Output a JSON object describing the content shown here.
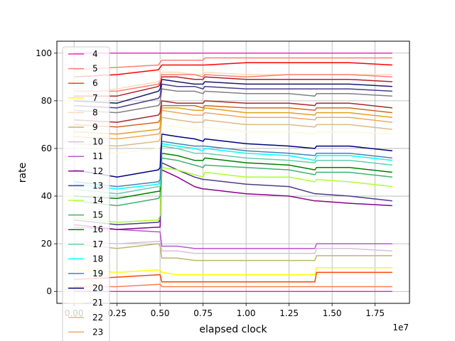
{
  "chart_data": {
    "type": "line",
    "title": "",
    "xlabel": "elapsed clock",
    "ylabel": "rate",
    "x_offset_label": "1e7",
    "xlim": [
      -0.1,
      1.95
    ],
    "ylim": [
      -5,
      105
    ],
    "x_scale": "1e7",
    "x_ticks": [
      0.0,
      0.25,
      0.5,
      0.75,
      1.0,
      1.25,
      1.5,
      1.75
    ],
    "x_tick_labels": [
      "0.00",
      "0.25",
      "0.50",
      "0.75",
      "1.00",
      "1.25",
      "1.50",
      "1.75"
    ],
    "y_ticks": [
      0,
      20,
      40,
      60,
      80,
      100
    ],
    "y_tick_labels": [
      "0",
      "20",
      "40",
      "60",
      "80",
      "100"
    ],
    "grid": true,
    "legend": "top-left",
    "x": [
      0.0,
      0.25,
      0.49,
      0.5,
      0.51,
      0.6,
      0.7,
      0.75,
      0.76,
      1.0,
      1.25,
      1.4,
      1.41,
      1.6,
      1.85
    ],
    "series": [
      {
        "name": "4",
        "color": "#e535b4",
        "values": [
          100,
          100,
          100,
          100,
          100,
          100,
          100,
          100,
          100,
          100,
          100,
          100,
          100,
          100,
          100
        ]
      },
      {
        "name": "5",
        "color": "#fa8072",
        "values": [
          93,
          94,
          95,
          96,
          97,
          97,
          97,
          97,
          98,
          98,
          98,
          98,
          98,
          98,
          98
        ]
      },
      {
        "name": "6",
        "color": "#ff4500",
        "values": [
          5,
          6,
          7,
          7,
          4,
          4,
          4,
          4,
          4,
          4,
          4,
          4,
          8,
          8,
          8
        ]
      },
      {
        "name": "7",
        "color": "#ffff00",
        "values": [
          9,
          8,
          9,
          9,
          8,
          7,
          7,
          7,
          7,
          7,
          7,
          7,
          10,
          10,
          10
        ]
      },
      {
        "name": "8",
        "color": "#ffdab9",
        "values": [
          83,
          85,
          88,
          89,
          92,
          92,
          91,
          91,
          92,
          91,
          91,
          91,
          91,
          91,
          91
        ]
      },
      {
        "name": "9",
        "color": "#bdb76b",
        "values": [
          20,
          18,
          20,
          19,
          14,
          14,
          13,
          13,
          13,
          13,
          13,
          13,
          15,
          15,
          15
        ]
      },
      {
        "name": "10",
        "color": "#d8bfd8",
        "values": [
          21,
          20,
          21,
          21,
          17,
          17,
          16,
          16,
          16,
          16,
          16,
          16,
          18,
          18,
          17
        ]
      },
      {
        "name": "11",
        "color": "#ba55d3",
        "values": [
          27,
          26,
          25,
          25,
          19,
          19,
          18,
          18,
          18,
          18,
          18,
          18,
          20,
          20,
          20
        ]
      },
      {
        "name": "12",
        "color": "#8b008b",
        "values": [
          28,
          26,
          27,
          27,
          51,
          48,
          44,
          43,
          43,
          41,
          40,
          38,
          38,
          37,
          36
        ]
      },
      {
        "name": "13",
        "color": "#483d8b",
        "values": [
          30,
          28,
          29,
          30,
          54,
          51,
          48,
          47,
          47,
          45,
          44,
          41,
          41,
          40,
          38
        ]
      },
      {
        "name": "14",
        "color": "#adff2f",
        "values": [
          31,
          29,
          30,
          32,
          52,
          51,
          49,
          48,
          50,
          48,
          48,
          46,
          47,
          46,
          44
        ]
      },
      {
        "name": "15",
        "color": "#3cb371",
        "values": [
          38,
          36,
          39,
          40,
          56,
          55,
          53,
          52,
          53,
          52,
          51,
          49,
          50,
          50,
          48
        ]
      },
      {
        "name": "16",
        "color": "#008000",
        "values": [
          40,
          39,
          42,
          42,
          58,
          57,
          55,
          55,
          56,
          54,
          53,
          51,
          52,
          52,
          50
        ]
      },
      {
        "name": "17",
        "color": "#66cdaa",
        "values": [
          43,
          41,
          44,
          44,
          61,
          60,
          58,
          58,
          58,
          56,
          55,
          54,
          55,
          55,
          53
        ]
      },
      {
        "name": "18",
        "color": "#00ffff",
        "values": [
          45,
          43,
          45,
          46,
          62,
          61,
          60,
          59,
          60,
          58,
          57,
          55,
          57,
          57,
          55
        ]
      },
      {
        "name": "19",
        "color": "#4682b4",
        "values": [
          46,
          44,
          46,
          47,
          63,
          62,
          61,
          61,
          61,
          59,
          58,
          57,
          58,
          58,
          56
        ]
      },
      {
        "name": "20",
        "color": "#000080",
        "values": [
          51,
          48,
          51,
          52,
          66,
          65,
          64,
          63,
          64,
          62,
          61,
          60,
          61,
          61,
          59
        ]
      },
      {
        "name": "21",
        "color": "#fff8dc",
        "values": [
          59,
          58,
          60,
          61,
          70,
          69,
          68,
          68,
          69,
          67,
          67,
          66,
          67,
          67,
          66
        ]
      },
      {
        "name": "22",
        "color": "#deb887",
        "values": [
          62,
          61,
          63,
          64,
          73,
          72,
          71,
          71,
          72,
          70,
          70,
          69,
          70,
          70,
          68
        ]
      },
      {
        "name": "23",
        "color": "#f4a460",
        "values": [
          65,
          64,
          66,
          67,
          76,
          75,
          74,
          74,
          75,
          73,
          73,
          72,
          73,
          73,
          71
        ]
      },
      {
        "name": "",
        "color": "#daa520",
        "values": [
          67,
          66,
          68,
          69,
          77,
          77,
          76,
          76,
          77,
          75,
          75,
          74,
          75,
          75,
          73
        ]
      },
      {
        "name": "",
        "color": "#d2691e",
        "values": [
          70,
          69,
          71,
          72,
          78,
          78,
          78,
          77,
          78,
          77,
          77,
          76,
          77,
          77,
          75
        ]
      },
      {
        "name": "",
        "color": "#a52a2a",
        "values": [
          72,
          71,
          74,
          75,
          80,
          79,
          79,
          79,
          80,
          79,
          79,
          78,
          79,
          79,
          77
        ]
      },
      {
        "name": "",
        "color": "#808080",
        "values": [
          76,
          75,
          78,
          79,
          85,
          84,
          84,
          83,
          84,
          83,
          83,
          82,
          83,
          83,
          82
        ]
      },
      {
        "name": "",
        "color": "#483d8b",
        "values": [
          78,
          77,
          81,
          82,
          87,
          86,
          86,
          85,
          86,
          85,
          85,
          85,
          85,
          85,
          84
        ]
      },
      {
        "name": "",
        "color": "#191970",
        "values": [
          80,
          79,
          84,
          85,
          89,
          88,
          87,
          87,
          88,
          87,
          87,
          87,
          87,
          87,
          86
        ]
      },
      {
        "name": "",
        "color": "#b22222",
        "values": [
          82,
          82,
          86,
          87,
          90,
          90,
          89,
          89,
          90,
          89,
          89,
          89,
          89,
          89,
          88
        ]
      },
      {
        "name": "",
        "color": "#fa8072",
        "values": [
          84,
          84,
          87,
          88,
          91,
          91,
          91,
          90,
          91,
          90,
          91,
          91,
          91,
          91,
          90
        ]
      },
      {
        "name": "",
        "color": "#ff0000",
        "values": [
          90,
          91,
          93,
          94,
          95,
          95,
          95,
          95,
          95,
          96,
          96,
          96,
          96,
          96,
          95
        ]
      },
      {
        "name": "",
        "color": "#ff7f50",
        "values": [
          2,
          2,
          3,
          3,
          2,
          2,
          2,
          2,
          2,
          2,
          2,
          2,
          2,
          2,
          2
        ]
      },
      {
        "name": "",
        "color": "#e535b4",
        "values": [
          0,
          0,
          0,
          0,
          0,
          0,
          0,
          0,
          0,
          0,
          0,
          0,
          0,
          0,
          0
        ]
      }
    ]
  }
}
